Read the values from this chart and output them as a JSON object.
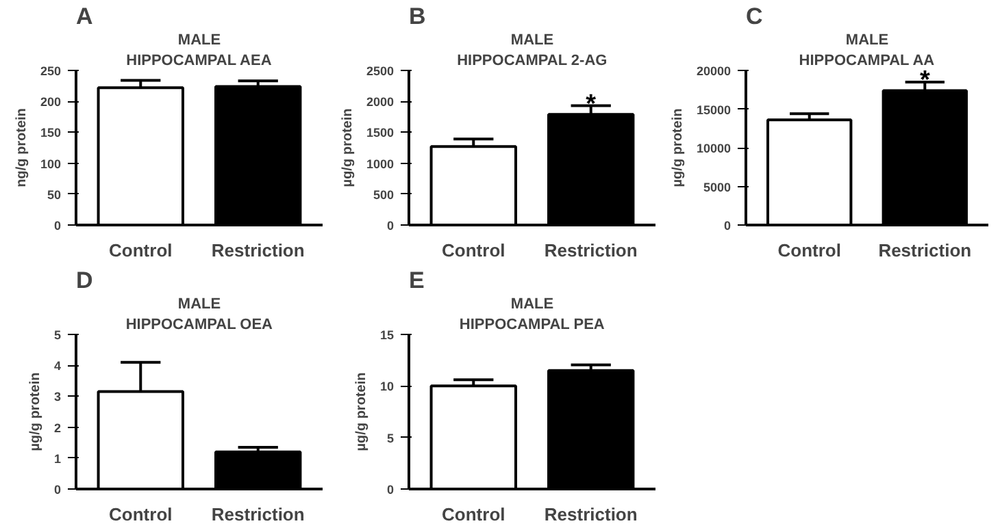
{
  "chart_data": [
    {
      "type": "bar",
      "title": "MALE",
      "subtitle": "HIPPOCAMPAL AEA",
      "ylabel": "ng/g protein",
      "categories": [
        "Control",
        "Restriction"
      ],
      "values": [
        222,
        224
      ],
      "colors": [
        "#ffffff",
        "#000000"
      ],
      "errors": [
        [
          222,
          234
        ],
        [
          224,
          233
        ]
      ],
      "ylim": [
        0,
        250
      ],
      "yticks": [
        0,
        50,
        100,
        150,
        200,
        250
      ],
      "grid": false,
      "annotations": [
        "A"
      ]
    },
    {
      "type": "bar",
      "title": "MALE",
      "subtitle": "HIPPOCAMPAL 2-AG",
      "ylabel": "µg/g protein",
      "categories": [
        "Control",
        "Restriction"
      ],
      "values": [
        1270,
        1790
      ],
      "colors": [
        "#ffffff",
        "#000000"
      ],
      "errors": [
        [
          1270,
          1390
        ],
        [
          1790,
          1930
        ]
      ],
      "ylim": [
        0,
        2500
      ],
      "yticks": [
        0,
        500,
        1000,
        1500,
        2000,
        2500
      ],
      "grid": false,
      "annotations": [
        "B",
        "*"
      ]
    },
    {
      "type": "bar",
      "title": "MALE",
      "subtitle": "HIPPOCAMPAL AA",
      "ylabel": "µg/g protein",
      "categories": [
        "Control",
        "Restriction"
      ],
      "values": [
        13600,
        17400
      ],
      "colors": [
        "#ffffff",
        "#000000"
      ],
      "errors": [
        [
          13600,
          14400
        ],
        [
          17400,
          18500
        ]
      ],
      "ylim": [
        0,
        20000
      ],
      "yticks": [
        0,
        5000,
        10000,
        15000,
        20000
      ],
      "grid": false,
      "annotations": [
        "C",
        "*"
      ]
    },
    {
      "type": "bar",
      "title": "MALE",
      "subtitle": "HIPPOCAMPAL OEA",
      "ylabel": "µg/g protein",
      "categories": [
        "Control",
        "Restriction"
      ],
      "values": [
        3.15,
        1.2
      ],
      "colors": [
        "#ffffff",
        "#000000"
      ],
      "errors": [
        [
          3.15,
          4.1
        ],
        [
          1.2,
          1.35
        ]
      ],
      "ylim": [
        0,
        5
      ],
      "yticks": [
        0,
        1,
        2,
        3,
        4,
        5
      ],
      "grid": false,
      "annotations": [
        "D"
      ]
    },
    {
      "type": "bar",
      "title": "MALE",
      "subtitle": "HIPPOCAMPAL PEA",
      "ylabel": "µg/g protein",
      "categories": [
        "Control",
        "Restriction"
      ],
      "values": [
        10,
        11.5
      ],
      "colors": [
        "#ffffff",
        "#000000"
      ],
      "errors": [
        [
          10,
          10.6
        ],
        [
          11.5,
          12.05
        ]
      ],
      "ylim": [
        0,
        15
      ],
      "yticks": [
        0,
        5,
        10,
        15
      ],
      "grid": false,
      "annotations": [
        "E"
      ]
    }
  ]
}
